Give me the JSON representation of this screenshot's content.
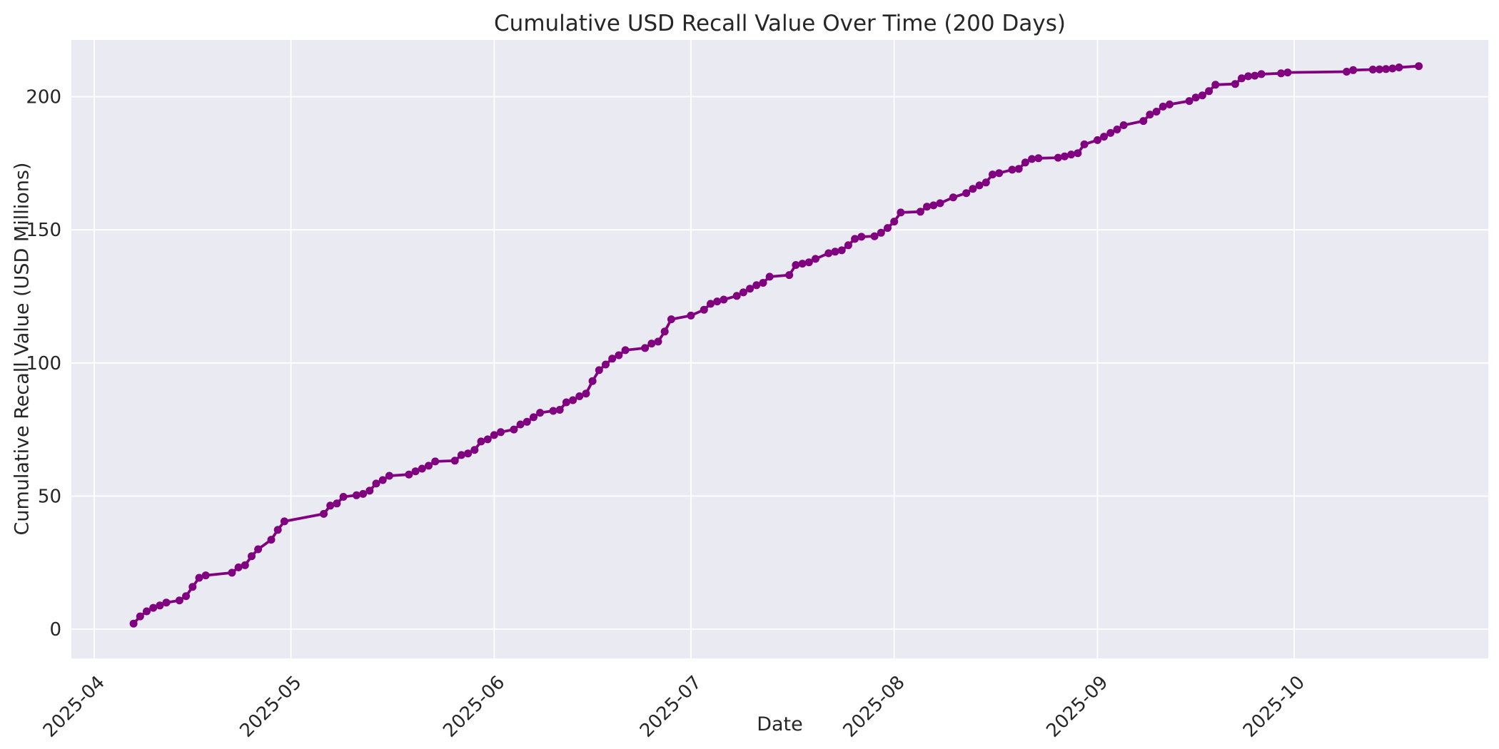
{
  "figure": {
    "title": "Cumulative USD Recall Value Over Time (200 Days)",
    "xlabel": "Date",
    "ylabel": "Cumulative Recall Value (USD Millions)"
  },
  "chart_data": {
    "type": "line",
    "title": "Cumulative USD Recall Value Over Time (200 Days)",
    "xlabel": "Date",
    "ylabel": "Cumulative Recall Value (USD Millions)",
    "grid": true,
    "legend": "none",
    "plot_bg_color": "#eaeaf2",
    "grid_color": "#ffffff",
    "text_color": "#262626",
    "line_color": "#800080",
    "marker": "circle",
    "y_ticks": [
      0,
      50,
      100,
      150,
      200
    ],
    "x_ticks": [
      {
        "label": "2025-04",
        "date": "2025-04-01"
      },
      {
        "label": "2025-05",
        "date": "2025-05-01"
      },
      {
        "label": "2025-06",
        "date": "2025-06-01"
      },
      {
        "label": "2025-07",
        "date": "2025-07-01"
      },
      {
        "label": "2025-08",
        "date": "2025-08-01"
      },
      {
        "label": "2025-09",
        "date": "2025-09-01"
      },
      {
        "label": "2025-10",
        "date": "2025-10-01"
      }
    ],
    "xlim": [
      "2025-03-28",
      "2025-10-30"
    ],
    "ylim": [
      -11,
      221
    ],
    "series_name": "Cumulative USD recall value",
    "points": [
      [
        "2025-04-07",
        2.1
      ],
      [
        "2025-04-08",
        4.8
      ],
      [
        "2025-04-09",
        6.7
      ],
      [
        "2025-04-10",
        8.0
      ],
      [
        "2025-04-11",
        8.9
      ],
      [
        "2025-04-12",
        10.0
      ],
      [
        "2025-04-14",
        10.8
      ],
      [
        "2025-04-15",
        12.4
      ],
      [
        "2025-04-16",
        15.9
      ],
      [
        "2025-04-17",
        19.3
      ],
      [
        "2025-04-18",
        20.2
      ],
      [
        "2025-04-22",
        21.2
      ],
      [
        "2025-04-23",
        23.2
      ],
      [
        "2025-04-24",
        24.0
      ],
      [
        "2025-04-25",
        27.4
      ],
      [
        "2025-04-26",
        30.0
      ],
      [
        "2025-04-28",
        33.6
      ],
      [
        "2025-04-29",
        37.3
      ],
      [
        "2025-04-30",
        40.5
      ],
      [
        "2025-05-06",
        43.3
      ],
      [
        "2025-05-07",
        46.4
      ],
      [
        "2025-05-08",
        47.2
      ],
      [
        "2025-05-09",
        49.7
      ],
      [
        "2025-05-11",
        50.3
      ],
      [
        "2025-05-12",
        50.8
      ],
      [
        "2025-05-13",
        52.0
      ],
      [
        "2025-05-14",
        54.7
      ],
      [
        "2025-05-15",
        56.0
      ],
      [
        "2025-05-16",
        57.6
      ],
      [
        "2025-05-19",
        58.1
      ],
      [
        "2025-05-20",
        59.3
      ],
      [
        "2025-05-21",
        60.3
      ],
      [
        "2025-05-22",
        61.4
      ],
      [
        "2025-05-23",
        63.0
      ],
      [
        "2025-05-26",
        63.3
      ],
      [
        "2025-05-27",
        65.4
      ],
      [
        "2025-05-28",
        66.0
      ],
      [
        "2025-05-29",
        67.3
      ],
      [
        "2025-05-30",
        70.5
      ],
      [
        "2025-05-31",
        71.3
      ],
      [
        "2025-06-01",
        72.9
      ],
      [
        "2025-06-02",
        74.0
      ],
      [
        "2025-06-04",
        75.0
      ],
      [
        "2025-06-05",
        76.9
      ],
      [
        "2025-06-06",
        77.9
      ],
      [
        "2025-06-07",
        79.6
      ],
      [
        "2025-06-08",
        81.3
      ],
      [
        "2025-06-10",
        82.0
      ],
      [
        "2025-06-11",
        82.4
      ],
      [
        "2025-06-12",
        85.2
      ],
      [
        "2025-06-13",
        86.0
      ],
      [
        "2025-06-14",
        87.5
      ],
      [
        "2025-06-15",
        88.5
      ],
      [
        "2025-06-16",
        93.2
      ],
      [
        "2025-06-17",
        97.3
      ],
      [
        "2025-06-18",
        99.4
      ],
      [
        "2025-06-19",
        101.6
      ],
      [
        "2025-06-20",
        102.9
      ],
      [
        "2025-06-21",
        104.8
      ],
      [
        "2025-06-24",
        105.6
      ],
      [
        "2025-06-25",
        107.3
      ],
      [
        "2025-06-26",
        108.0
      ],
      [
        "2025-06-27",
        111.8
      ],
      [
        "2025-06-28",
        116.4
      ],
      [
        "2025-07-01",
        117.8
      ],
      [
        "2025-07-03",
        120.0
      ],
      [
        "2025-07-04",
        122.2
      ],
      [
        "2025-07-05",
        123.1
      ],
      [
        "2025-07-06",
        123.8
      ],
      [
        "2025-07-08",
        125.2
      ],
      [
        "2025-07-09",
        126.5
      ],
      [
        "2025-07-10",
        127.9
      ],
      [
        "2025-07-11",
        129.2
      ],
      [
        "2025-07-12",
        130.1
      ],
      [
        "2025-07-13",
        132.4
      ],
      [
        "2025-07-16",
        133.0
      ],
      [
        "2025-07-17",
        136.8
      ],
      [
        "2025-07-18",
        137.3
      ],
      [
        "2025-07-19",
        137.8
      ],
      [
        "2025-07-20",
        139.1
      ],
      [
        "2025-07-22",
        141.2
      ],
      [
        "2025-07-23",
        141.8
      ],
      [
        "2025-07-24",
        142.3
      ],
      [
        "2025-07-25",
        144.2
      ],
      [
        "2025-07-26",
        146.6
      ],
      [
        "2025-07-27",
        147.4
      ],
      [
        "2025-07-29",
        147.6
      ],
      [
        "2025-07-30",
        148.9
      ],
      [
        "2025-07-31",
        150.7
      ],
      [
        "2025-08-01",
        153.1
      ],
      [
        "2025-08-02",
        156.5
      ],
      [
        "2025-08-05",
        156.8
      ],
      [
        "2025-08-06",
        158.7
      ],
      [
        "2025-08-07",
        159.2
      ],
      [
        "2025-08-08",
        160.0
      ],
      [
        "2025-08-10",
        162.2
      ],
      [
        "2025-08-12",
        163.8
      ],
      [
        "2025-08-13",
        165.4
      ],
      [
        "2025-08-14",
        166.7
      ],
      [
        "2025-08-15",
        167.8
      ],
      [
        "2025-08-16",
        170.8
      ],
      [
        "2025-08-17",
        171.3
      ],
      [
        "2025-08-19",
        172.6
      ],
      [
        "2025-08-20",
        172.9
      ],
      [
        "2025-08-21",
        175.3
      ],
      [
        "2025-08-22",
        176.6
      ],
      [
        "2025-08-23",
        176.9
      ],
      [
        "2025-08-26",
        177.1
      ],
      [
        "2025-08-27",
        177.6
      ],
      [
        "2025-08-28",
        178.3
      ],
      [
        "2025-08-29",
        178.8
      ],
      [
        "2025-08-30",
        182.1
      ],
      [
        "2025-09-01",
        183.7
      ],
      [
        "2025-09-02",
        185.0
      ],
      [
        "2025-09-03",
        186.4
      ],
      [
        "2025-09-04",
        187.7
      ],
      [
        "2025-09-05",
        189.3
      ],
      [
        "2025-09-08",
        190.9
      ],
      [
        "2025-09-09",
        193.3
      ],
      [
        "2025-09-10",
        194.4
      ],
      [
        "2025-09-11",
        196.3
      ],
      [
        "2025-09-12",
        197.1
      ],
      [
        "2025-09-15",
        198.4
      ],
      [
        "2025-09-16",
        199.7
      ],
      [
        "2025-09-17",
        200.5
      ],
      [
        "2025-09-18",
        202.1
      ],
      [
        "2025-09-19",
        204.5
      ],
      [
        "2025-09-22",
        204.8
      ],
      [
        "2025-09-23",
        206.9
      ],
      [
        "2025-09-24",
        207.7
      ],
      [
        "2025-09-25",
        207.9
      ],
      [
        "2025-09-26",
        208.5
      ],
      [
        "2025-09-29",
        208.8
      ],
      [
        "2025-09-30",
        209.1
      ],
      [
        "2025-10-09",
        209.4
      ],
      [
        "2025-10-10",
        210.0
      ],
      [
        "2025-10-13",
        210.2
      ],
      [
        "2025-10-14",
        210.3
      ],
      [
        "2025-10-15",
        210.4
      ],
      [
        "2025-10-16",
        210.6
      ],
      [
        "2025-10-17",
        211.0
      ],
      [
        "2025-10-20",
        211.5
      ]
    ]
  }
}
